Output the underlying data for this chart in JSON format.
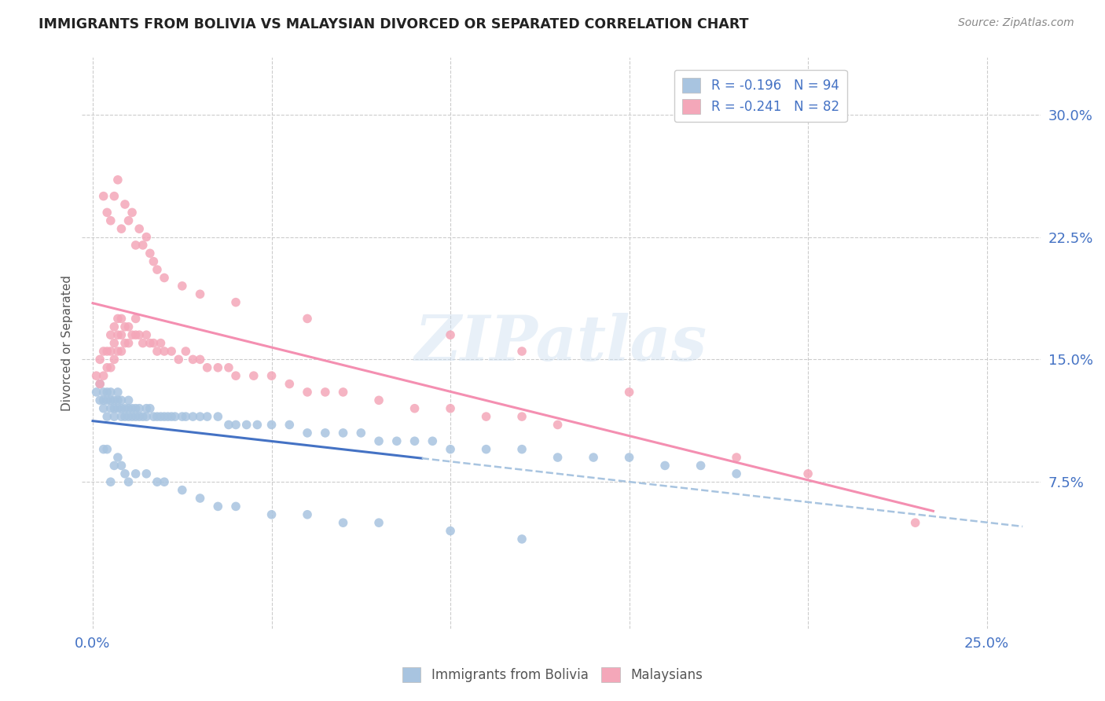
{
  "title": "IMMIGRANTS FROM BOLIVIA VS MALAYSIAN DIVORCED OR SEPARATED CORRELATION CHART",
  "source": "Source: ZipAtlas.com",
  "ylabel": "Divorced or Separated",
  "xlim": [
    -0.003,
    0.265
  ],
  "ylim": [
    -0.015,
    0.335
  ],
  "color_blue": "#a8c4e0",
  "color_pink": "#f4a7b9",
  "trendline_blue": "#4472c4",
  "trendline_pink": "#f48fb1",
  "trendline_dashed_color": "#a8c4e0",
  "axis_color": "#4472c4",
  "grid_color": "#cccccc",
  "x_tick_positions": [
    0.0,
    0.05,
    0.1,
    0.15,
    0.2,
    0.25
  ],
  "x_tick_labels": [
    "0.0%",
    "",
    "",
    "",
    "",
    "25.0%"
  ],
  "y_tick_positions": [
    0.075,
    0.15,
    0.225,
    0.3
  ],
  "y_tick_labels": [
    "7.5%",
    "15.0%",
    "22.5%",
    "30.0%"
  ],
  "legend1_label": "R = -0.196   N = 94",
  "legend2_label": "R = -0.241   N = 82",
  "bottom_legend1": "Immigrants from Bolivia",
  "bottom_legend2": "Malaysians",
  "watermark": "ZIPatlas",
  "bolivia_x": [
    0.001,
    0.002,
    0.002,
    0.003,
    0.003,
    0.003,
    0.004,
    0.004,
    0.004,
    0.005,
    0.005,
    0.005,
    0.006,
    0.006,
    0.006,
    0.007,
    0.007,
    0.007,
    0.008,
    0.008,
    0.008,
    0.009,
    0.009,
    0.01,
    0.01,
    0.01,
    0.011,
    0.011,
    0.012,
    0.012,
    0.013,
    0.013,
    0.014,
    0.015,
    0.015,
    0.016,
    0.017,
    0.018,
    0.019,
    0.02,
    0.021,
    0.022,
    0.023,
    0.025,
    0.026,
    0.028,
    0.03,
    0.032,
    0.035,
    0.038,
    0.04,
    0.043,
    0.046,
    0.05,
    0.055,
    0.06,
    0.065,
    0.07,
    0.075,
    0.08,
    0.085,
    0.09,
    0.095,
    0.1,
    0.11,
    0.12,
    0.13,
    0.14,
    0.15,
    0.16,
    0.17,
    0.18,
    0.003,
    0.004,
    0.005,
    0.006,
    0.007,
    0.008,
    0.009,
    0.01,
    0.012,
    0.015,
    0.018,
    0.02,
    0.025,
    0.03,
    0.035,
    0.04,
    0.05,
    0.06,
    0.07,
    0.08,
    0.1,
    0.12
  ],
  "bolivia_y": [
    0.13,
    0.125,
    0.135,
    0.12,
    0.13,
    0.125,
    0.115,
    0.125,
    0.13,
    0.12,
    0.125,
    0.13,
    0.125,
    0.115,
    0.12,
    0.12,
    0.125,
    0.13,
    0.115,
    0.12,
    0.125,
    0.115,
    0.12,
    0.115,
    0.12,
    0.125,
    0.115,
    0.12,
    0.115,
    0.12,
    0.115,
    0.12,
    0.115,
    0.12,
    0.115,
    0.12,
    0.115,
    0.115,
    0.115,
    0.115,
    0.115,
    0.115,
    0.115,
    0.115,
    0.115,
    0.115,
    0.115,
    0.115,
    0.115,
    0.11,
    0.11,
    0.11,
    0.11,
    0.11,
    0.11,
    0.105,
    0.105,
    0.105,
    0.105,
    0.1,
    0.1,
    0.1,
    0.1,
    0.095,
    0.095,
    0.095,
    0.09,
    0.09,
    0.09,
    0.085,
    0.085,
    0.08,
    0.095,
    0.095,
    0.075,
    0.085,
    0.09,
    0.085,
    0.08,
    0.075,
    0.08,
    0.08,
    0.075,
    0.075,
    0.07,
    0.065,
    0.06,
    0.06,
    0.055,
    0.055,
    0.05,
    0.05,
    0.045,
    0.04
  ],
  "malaysian_x": [
    0.001,
    0.002,
    0.002,
    0.003,
    0.003,
    0.004,
    0.004,
    0.005,
    0.005,
    0.005,
    0.006,
    0.006,
    0.006,
    0.007,
    0.007,
    0.007,
    0.008,
    0.008,
    0.008,
    0.009,
    0.009,
    0.01,
    0.01,
    0.011,
    0.012,
    0.012,
    0.013,
    0.014,
    0.015,
    0.016,
    0.017,
    0.018,
    0.019,
    0.02,
    0.022,
    0.024,
    0.026,
    0.028,
    0.03,
    0.032,
    0.035,
    0.038,
    0.04,
    0.045,
    0.05,
    0.055,
    0.06,
    0.065,
    0.07,
    0.08,
    0.09,
    0.1,
    0.11,
    0.12,
    0.13,
    0.003,
    0.004,
    0.005,
    0.006,
    0.007,
    0.008,
    0.009,
    0.01,
    0.011,
    0.012,
    0.013,
    0.014,
    0.015,
    0.016,
    0.017,
    0.018,
    0.02,
    0.025,
    0.03,
    0.04,
    0.06,
    0.1,
    0.12,
    0.15,
    0.18,
    0.2,
    0.23
  ],
  "malaysian_y": [
    0.14,
    0.135,
    0.15,
    0.14,
    0.155,
    0.145,
    0.155,
    0.145,
    0.155,
    0.165,
    0.15,
    0.16,
    0.17,
    0.155,
    0.165,
    0.175,
    0.155,
    0.165,
    0.175,
    0.16,
    0.17,
    0.16,
    0.17,
    0.165,
    0.165,
    0.175,
    0.165,
    0.16,
    0.165,
    0.16,
    0.16,
    0.155,
    0.16,
    0.155,
    0.155,
    0.15,
    0.155,
    0.15,
    0.15,
    0.145,
    0.145,
    0.145,
    0.14,
    0.14,
    0.14,
    0.135,
    0.13,
    0.13,
    0.13,
    0.125,
    0.12,
    0.12,
    0.115,
    0.115,
    0.11,
    0.25,
    0.24,
    0.235,
    0.25,
    0.26,
    0.23,
    0.245,
    0.235,
    0.24,
    0.22,
    0.23,
    0.22,
    0.225,
    0.215,
    0.21,
    0.205,
    0.2,
    0.195,
    0.19,
    0.185,
    0.175,
    0.165,
    0.155,
    0.13,
    0.09,
    0.08,
    0.05
  ]
}
